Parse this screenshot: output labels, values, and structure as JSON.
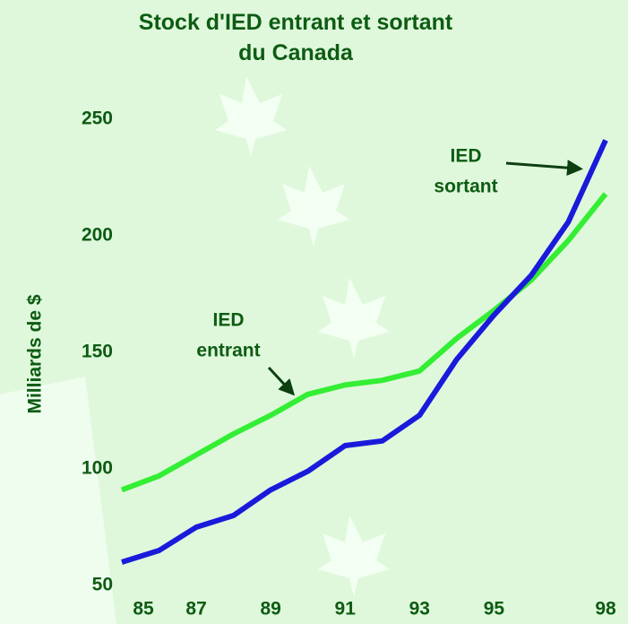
{
  "chart_data": {
    "type": "line",
    "title": "Stock d'IED entrant et sortant du Canada",
    "y_label": "Milliards de $",
    "x": [
      85,
      86,
      87,
      88,
      89,
      90,
      91,
      92,
      93,
      94,
      95,
      96,
      97,
      98
    ],
    "series": [
      {
        "color": "#33ee33",
        "values": [
          91,
          97,
          106,
          115,
          123,
          132,
          136,
          138,
          142,
          156,
          168,
          181,
          198,
          218
        ]
      },
      {
        "color": "#1a1adb",
        "values": [
          60,
          65,
          75,
          80,
          91,
          99,
          110,
          112,
          123,
          147,
          166,
          183,
          206,
          241
        ]
      }
    ],
    "annotations": [
      [
        "IED",
        "sortant"
      ],
      [
        "IED",
        "entrant"
      ]
    ],
    "xlim": [
      85,
      98
    ],
    "xticks": [
      85,
      87,
      89,
      91,
      93,
      95,
      98
    ],
    "ylim": [
      50,
      250
    ],
    "yticks": [
      50,
      100,
      150,
      200,
      250
    ],
    "grid": false
  }
}
